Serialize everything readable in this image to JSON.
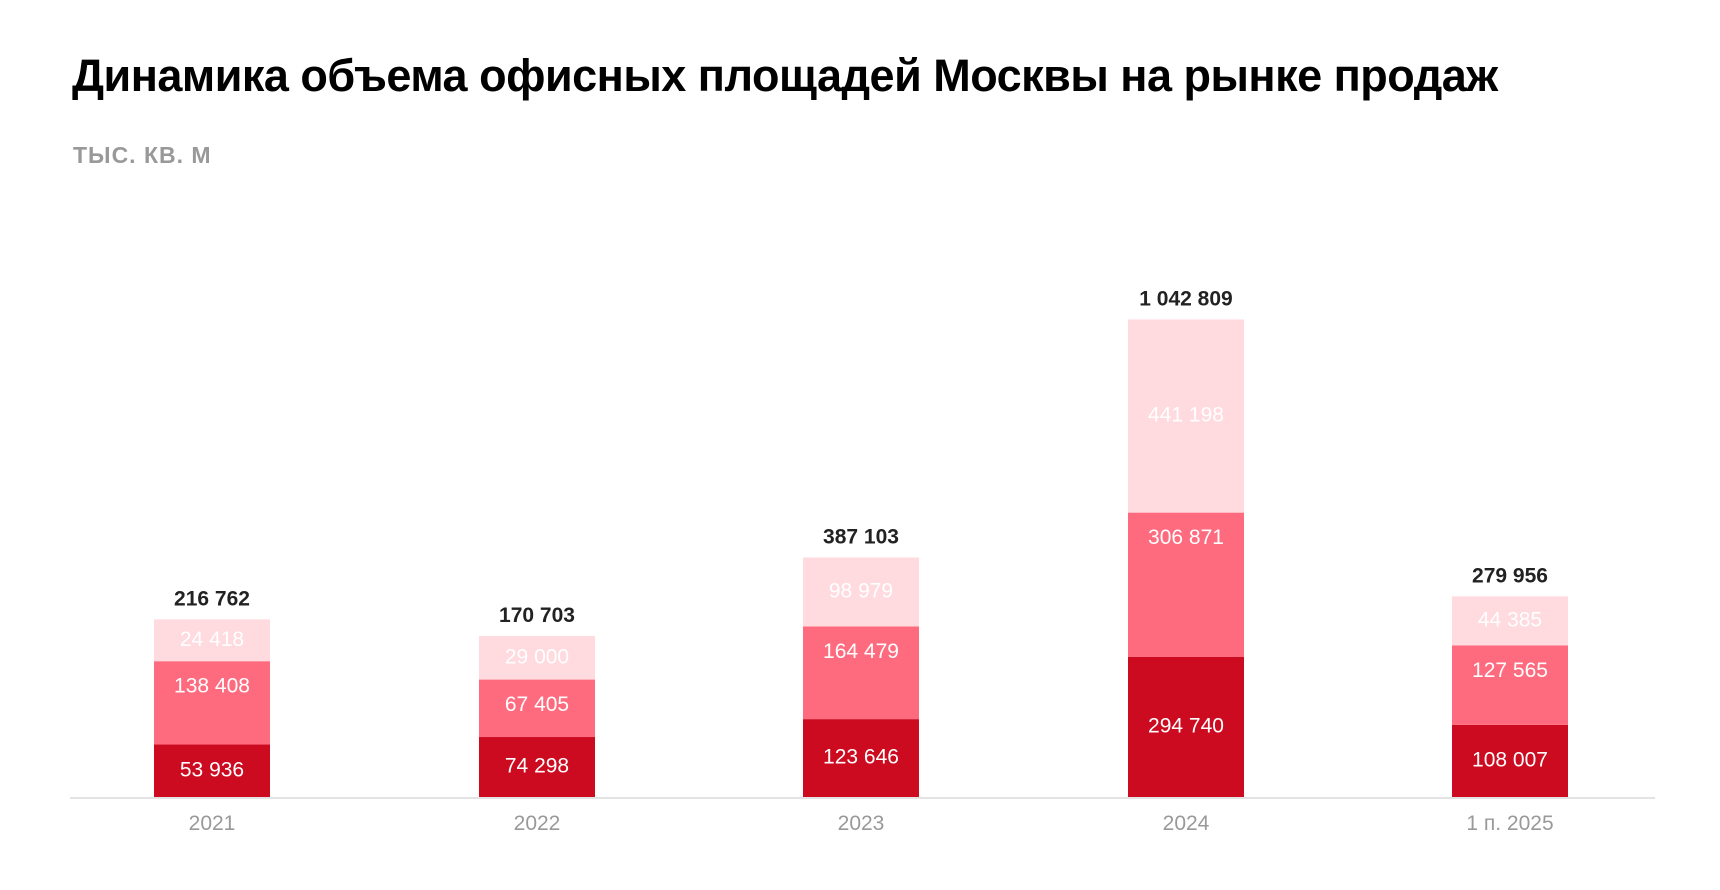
{
  "title": "Динамика объема офисных площадей Москвы на рынке продаж",
  "unit": "ТЫС. КВ. М",
  "chart_data": {
    "type": "bar",
    "stacked": true,
    "title": "Динамика объема офисных площадей Москвы на рынке продаж",
    "ylabel": "ТЫС. КВ. М",
    "categories": [
      "2021",
      "2022",
      "2023",
      "2024",
      "1 п. 2025"
    ],
    "series": [
      {
        "name": "bottom",
        "color": "#CC0A20",
        "values": [
          53936,
          74298,
          123646,
          294740,
          108007
        ],
        "labels": [
          "53 936",
          "74 298",
          "123 646",
          "294 740",
          "108 007"
        ]
      },
      {
        "name": "middle",
        "color": "#FF6B7E",
        "values": [
          138408,
          67405,
          164479,
          306871,
          127565
        ],
        "labels": [
          "138 408",
          "67 405",
          "164 479",
          "306 871",
          "127 565"
        ]
      },
      {
        "name": "top",
        "color": "#FFDADF",
        "values": [
          24418,
          29000,
          98979,
          441198,
          44385
        ],
        "labels": [
          "24 418",
          "29 000",
          "98 979",
          "441 198",
          "44 385"
        ]
      }
    ],
    "totals": [
      216762,
      170703,
      387103,
      1042809,
      279956
    ],
    "total_labels": [
      "216 762",
      "170 703",
      "387 103",
      "1 042 809",
      "279 956"
    ],
    "grid": false,
    "legend": "none"
  }
}
